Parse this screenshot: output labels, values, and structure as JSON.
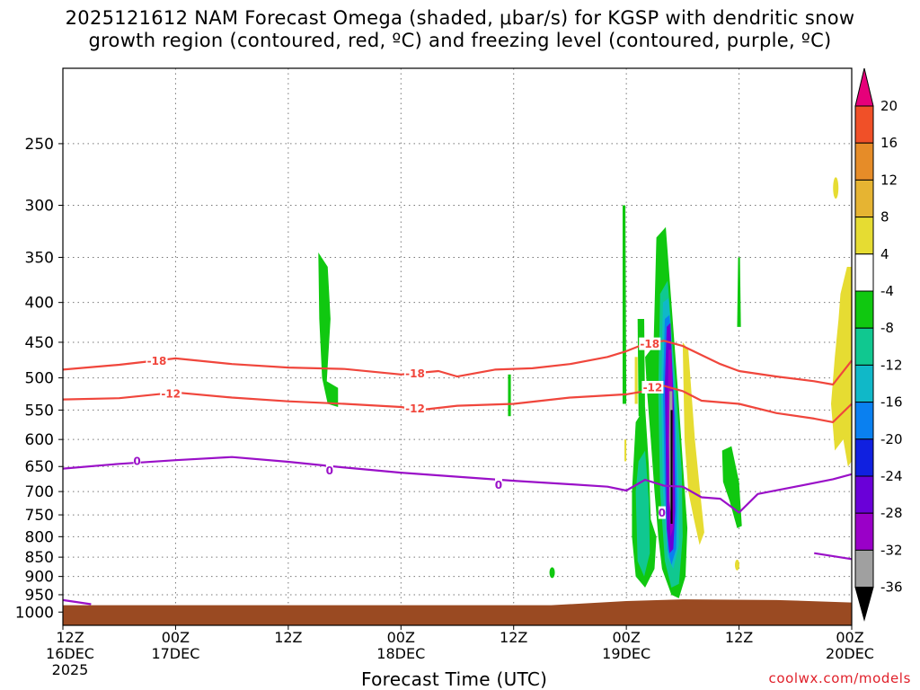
{
  "title_line1": "2025121612 NAM Forecast Omega (shaded, μbar/s) for KGSP with dendritic snow",
  "title_line2": "growth region (contoured, red, ºC) and freezing level (contoured, purple, ºC)",
  "x_axis_title": "Forecast Time (UTC)",
  "credit": "coolwx.com/models",
  "chart_data": {
    "type": "heatmap",
    "title": "2025121612 NAM Forecast Omega (shaded, μbar/s) for KGSP with dendritic snow growth region (contoured, red, ºC) and freezing level (contoured, purple, ºC)",
    "xlabel": "Forecast Time (UTC)",
    "ylabel": "",
    "x_range_hours": [
      0,
      84
    ],
    "y_range_hpa": [
      200,
      1040
    ],
    "y_ticks": [
      250,
      300,
      350,
      400,
      450,
      500,
      550,
      600,
      650,
      700,
      750,
      800,
      850,
      900,
      950,
      1000
    ],
    "x_ticks": [
      {
        "hour": 0,
        "line1": "12Z",
        "line2": "16DEC",
        "line3": "2025"
      },
      {
        "hour": 12,
        "line1": "00Z",
        "line2": "17DEC",
        "line3": ""
      },
      {
        "hour": 24,
        "line1": "12Z",
        "line2": "",
        "line3": ""
      },
      {
        "hour": 36,
        "line1": "00Z",
        "line2": "18DEC",
        "line3": ""
      },
      {
        "hour": 48,
        "line1": "12Z",
        "line2": "",
        "line3": ""
      },
      {
        "hour": 60,
        "line1": "00Z",
        "line2": "19DEC",
        "line3": ""
      },
      {
        "hour": 72,
        "line1": "12Z",
        "line2": "",
        "line3": ""
      },
      {
        "hour": 84,
        "line1": "00Z",
        "line2": "20DEC",
        "line3": ""
      }
    ],
    "colorbar": {
      "levels": [
        -36,
        -32,
        -28,
        -24,
        -20,
        -16,
        -12,
        -8,
        -4,
        4,
        8,
        12,
        16,
        20
      ],
      "colors": [
        "#000000",
        "#a0a0a0",
        "#9a00c8",
        "#6a00d8",
        "#1020e0",
        "#0a80f0",
        "#10b8c8",
        "#10c890",
        "#10c810",
        "#ffffff",
        "#e6dc32",
        "#e6b432",
        "#e68c28",
        "#f05028",
        "#e6007a"
      ]
    },
    "contours": {
      "dgz_-18C": {
        "color": "#f0463c",
        "label": "-18",
        "points": [
          [
            0,
            488
          ],
          [
            6,
            481
          ],
          [
            12,
            472
          ],
          [
            18,
            480
          ],
          [
            24,
            485
          ],
          [
            30,
            487
          ],
          [
            36,
            495
          ],
          [
            40,
            490
          ],
          [
            42,
            498
          ],
          [
            46,
            488
          ],
          [
            50,
            486
          ],
          [
            54,
            480
          ],
          [
            58,
            470
          ],
          [
            60,
            462
          ],
          [
            62,
            452
          ],
          [
            64,
            448
          ],
          [
            66,
            455
          ],
          [
            70,
            480
          ],
          [
            72,
            490
          ],
          [
            76,
            498
          ],
          [
            80,
            505
          ],
          [
            82,
            510
          ],
          [
            84,
            475
          ]
        ]
      },
      "dgz_-12C": {
        "color": "#f0463c",
        "label": "-12",
        "points": [
          [
            0,
            533
          ],
          [
            6,
            531
          ],
          [
            12,
            522
          ],
          [
            18,
            530
          ],
          [
            24,
            536
          ],
          [
            30,
            540
          ],
          [
            36,
            545
          ],
          [
            38,
            550
          ],
          [
            42,
            543
          ],
          [
            48,
            540
          ],
          [
            54,
            530
          ],
          [
            60,
            525
          ],
          [
            62,
            520
          ],
          [
            64,
            512
          ],
          [
            66,
            520
          ],
          [
            68,
            535
          ],
          [
            72,
            540
          ],
          [
            76,
            555
          ],
          [
            80,
            564
          ],
          [
            82,
            570
          ],
          [
            84,
            540
          ]
        ]
      },
      "freezing_0C": {
        "color": "#9a10c8",
        "label": "0",
        "points": [
          [
            0,
            654
          ],
          [
            6,
            645
          ],
          [
            12,
            638
          ],
          [
            18,
            632
          ],
          [
            24,
            641
          ],
          [
            30,
            652
          ],
          [
            36,
            662
          ],
          [
            42,
            670
          ],
          [
            48,
            678
          ],
          [
            54,
            685
          ],
          [
            58,
            690
          ],
          [
            60,
            698
          ],
          [
            62,
            676
          ],
          [
            64,
            688
          ],
          [
            66,
            690
          ],
          [
            68,
            712
          ],
          [
            70,
            715
          ],
          [
            72,
            745
          ],
          [
            74,
            705
          ],
          [
            78,
            690
          ],
          [
            82,
            675
          ],
          [
            84,
            665
          ]
        ]
      },
      "freezing_0C_surface": {
        "color": "#9a10c8",
        "label": "",
        "points": [
          [
            0,
            965
          ],
          [
            3,
            977
          ]
        ]
      },
      "freezing_0C_lower": {
        "color": "#9a10c8",
        "label": "",
        "points": [
          [
            80,
            840
          ],
          [
            84,
            855
          ]
        ]
      }
    },
    "omega_features": [
      {
        "desc": "upward motion column",
        "hour_range": [
          63,
          67
        ],
        "hpa_range": [
          330,
          950
        ],
        "min": -36
      },
      {
        "desc": "upward motion",
        "hour_range": [
          27,
          30
        ],
        "hpa_range": [
          345,
          540
        ],
        "min": -8
      },
      {
        "desc": "upward motion",
        "hour_range": [
          70,
          72
        ],
        "hpa_range": [
          620,
          775
        ],
        "min": -8
      },
      {
        "desc": "downward motion",
        "hour_range": [
          66,
          68
        ],
        "hpa_range": [
          455,
          810
        ],
        "max": 8
      },
      {
        "desc": "downward motion",
        "hour_range": [
          82,
          84
        ],
        "hpa_range": [
          350,
          650
        ],
        "max": 8
      }
    ]
  }
}
